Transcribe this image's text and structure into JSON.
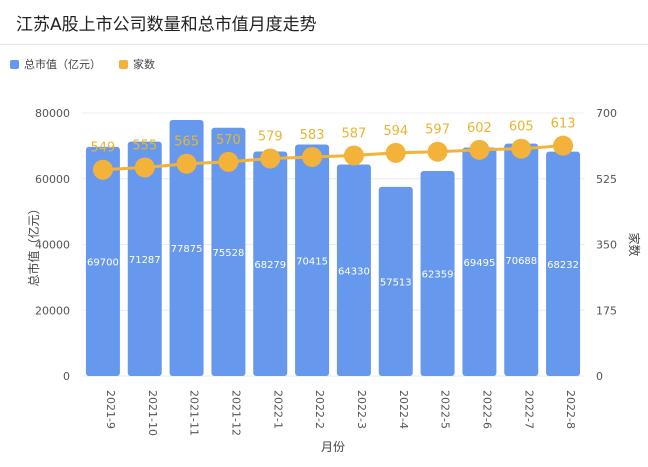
{
  "title": "江苏A股上市公司数量和总市值月度走势",
  "colors": {
    "bar": "#6699ee",
    "line": "#f3b23a",
    "label": "#e8b530"
  },
  "chart_data": {
    "type": "bar+line",
    "categories": [
      "2021-9",
      "2021-10",
      "2021-11",
      "2021-12",
      "2022-1",
      "2022-2",
      "2022-3",
      "2022-4",
      "2022-5",
      "2022-6",
      "2022-7",
      "2022-8"
    ],
    "xlabel": "月份",
    "series": [
      {
        "name": "总市值（亿元）",
        "type": "bar",
        "axis": "left",
        "values": [
          69700,
          71287,
          77875,
          75528,
          68279,
          70415,
          64330,
          57513,
          62359,
          69495,
          70688,
          68232
        ]
      },
      {
        "name": "家数",
        "type": "line",
        "axis": "right",
        "values": [
          549,
          555,
          565,
          570,
          579,
          583,
          587,
          594,
          597,
          602,
          605,
          613
        ]
      }
    ],
    "y_left": {
      "label": "总市值（亿元）",
      "ticks": [
        0,
        20000,
        40000,
        60000,
        80000
      ],
      "lim": [
        0,
        80000
      ]
    },
    "y_right": {
      "label": "家数",
      "ticks": [
        0,
        175,
        350,
        525,
        700
      ],
      "lim": [
        0,
        700
      ]
    },
    "legend": "top-left"
  }
}
